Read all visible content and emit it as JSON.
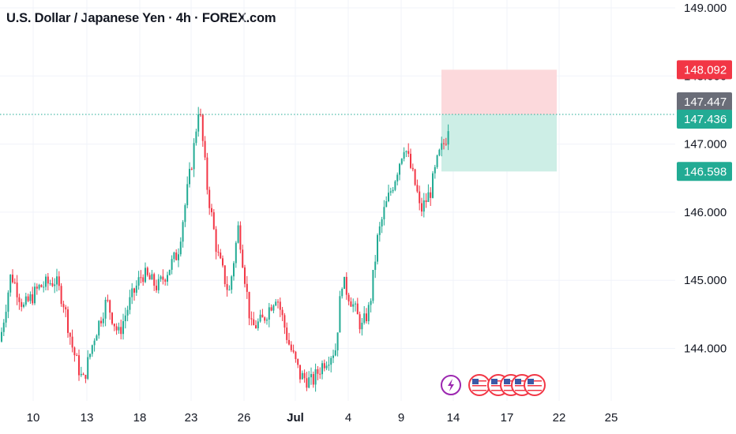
{
  "header": {
    "title": "U.S. Dollar / Japanese Yen · 4h · FOREX.com"
  },
  "colors": {
    "up": "#22ab94",
    "down": "#f23645",
    "profit_zone": "#cdeee6",
    "loss_zone": "#fcd9dc",
    "gray_label": "#6a6d78",
    "event_purple": "#9c27b0"
  },
  "chart_data": {
    "type": "candlestick",
    "title": "U.S. Dollar / Japanese Yen · 4h · FOREX.com",
    "ylim": [
      143.25,
      149.05
    ],
    "y_ticks": [
      "149.000",
      "148.000",
      "147.000",
      "146.000",
      "145.000",
      "144.000"
    ],
    "y_tick_values": [
      149.0,
      148.0,
      147.0,
      146.0,
      145.0,
      144.0
    ],
    "x_ticks": [
      {
        "label": "10",
        "bold": false
      },
      {
        "label": "13",
        "bold": false
      },
      {
        "label": "18",
        "bold": false
      },
      {
        "label": "23",
        "bold": false
      },
      {
        "label": "26",
        "bold": false
      },
      {
        "label": "Jul",
        "bold": true
      },
      {
        "label": "4",
        "bold": false
      },
      {
        "label": "9",
        "bold": false
      },
      {
        "label": "14",
        "bold": false
      },
      {
        "label": "17",
        "bold": false
      },
      {
        "label": "22",
        "bold": false
      },
      {
        "label": "25",
        "bold": false
      }
    ],
    "price_labels": [
      {
        "value": 148.092,
        "label": "148.092",
        "kind": "stop-loss"
      },
      {
        "value": 147.447,
        "label": "147.447",
        "kind": "last-price"
      },
      {
        "value": 147.436,
        "label": "147.436",
        "kind": "entry"
      },
      {
        "value": 146.598,
        "label": "146.598",
        "kind": "take-profit"
      }
    ],
    "position": {
      "entry": 147.436,
      "stop": 148.092,
      "target": 146.598
    },
    "grid": true,
    "event_icons": [
      "lightning-event-icon",
      "us-flag-event-icon",
      "us-flag-event-icon",
      "us-flag-event-icon",
      "us-flag-event-icon",
      "us-flag-event-icon"
    ]
  }
}
